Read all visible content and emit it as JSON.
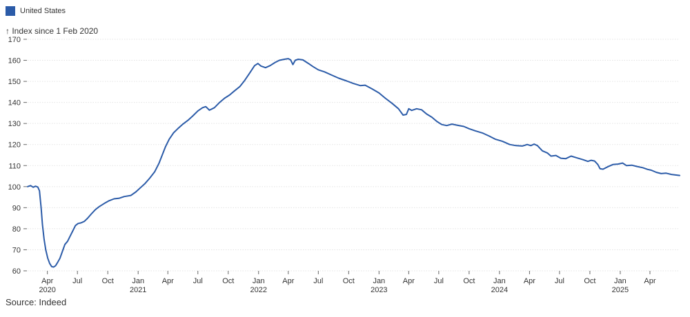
{
  "legend": {
    "label": "United States",
    "color": "#2b5ba8"
  },
  "axis_title": "↑ Index since 1 Feb 2020",
  "source": "Source: Indeed",
  "chart_data": {
    "type": "line",
    "ylabel": "↑ Index since 1 Feb 2020",
    "ylim": [
      60,
      170
    ],
    "yticks": [
      60,
      70,
      80,
      90,
      100,
      110,
      120,
      130,
      140,
      150,
      160,
      170
    ],
    "xlim": [
      "2020-02-01",
      "2025-06-30"
    ],
    "xticks": [
      {
        "date": "2020-04-01",
        "label": "Apr",
        "year": "2020"
      },
      {
        "date": "2020-07-01",
        "label": "Jul",
        "year": ""
      },
      {
        "date": "2020-10-01",
        "label": "Oct",
        "year": ""
      },
      {
        "date": "2021-01-01",
        "label": "Jan",
        "year": "2021"
      },
      {
        "date": "2021-04-01",
        "label": "Apr",
        "year": ""
      },
      {
        "date": "2021-07-01",
        "label": "Jul",
        "year": ""
      },
      {
        "date": "2021-10-01",
        "label": "Oct",
        "year": ""
      },
      {
        "date": "2022-01-01",
        "label": "Jan",
        "year": "2022"
      },
      {
        "date": "2022-04-01",
        "label": "Apr",
        "year": ""
      },
      {
        "date": "2022-07-01",
        "label": "Jul",
        "year": ""
      },
      {
        "date": "2022-10-01",
        "label": "Oct",
        "year": ""
      },
      {
        "date": "2023-01-01",
        "label": "Jan",
        "year": "2023"
      },
      {
        "date": "2023-04-01",
        "label": "Apr",
        "year": ""
      },
      {
        "date": "2023-07-01",
        "label": "Jul",
        "year": ""
      },
      {
        "date": "2023-10-01",
        "label": "Oct",
        "year": ""
      },
      {
        "date": "2024-01-01",
        "label": "Jan",
        "year": "2024"
      },
      {
        "date": "2024-04-01",
        "label": "Apr",
        "year": ""
      },
      {
        "date": "2024-07-01",
        "label": "Jul",
        "year": ""
      },
      {
        "date": "2024-10-01",
        "label": "Oct",
        "year": ""
      },
      {
        "date": "2025-01-01",
        "label": "Jan",
        "year": "2025"
      },
      {
        "date": "2025-04-01",
        "label": "Apr",
        "year": ""
      }
    ],
    "grid": true,
    "legend_position": "top-left",
    "series": [
      {
        "name": "United States",
        "color": "#2b5ba8",
        "points": [
          [
            "2020-02-01",
            100
          ],
          [
            "2020-02-10",
            100.5
          ],
          [
            "2020-02-18",
            99.7
          ],
          [
            "2020-02-25",
            100.2
          ],
          [
            "2020-03-03",
            99.8
          ],
          [
            "2020-03-08",
            98
          ],
          [
            "2020-03-13",
            90
          ],
          [
            "2020-03-17",
            82
          ],
          [
            "2020-03-22",
            75
          ],
          [
            "2020-03-27",
            70
          ],
          [
            "2020-04-02",
            66
          ],
          [
            "2020-04-08",
            63.5
          ],
          [
            "2020-04-14",
            62
          ],
          [
            "2020-04-20",
            61.8
          ],
          [
            "2020-04-26",
            62.5
          ],
          [
            "2020-05-02",
            64
          ],
          [
            "2020-05-09",
            66
          ],
          [
            "2020-05-16",
            69
          ],
          [
            "2020-05-24",
            72.5
          ],
          [
            "2020-06-01",
            74
          ],
          [
            "2020-06-09",
            76.5
          ],
          [
            "2020-06-17",
            79
          ],
          [
            "2020-06-25",
            81.5
          ],
          [
            "2020-07-03",
            82.5
          ],
          [
            "2020-07-12",
            82.8
          ],
          [
            "2020-07-22",
            83.5
          ],
          [
            "2020-08-01",
            85
          ],
          [
            "2020-08-12",
            87
          ],
          [
            "2020-08-24",
            89
          ],
          [
            "2020-09-05",
            90.5
          ],
          [
            "2020-09-20",
            92
          ],
          [
            "2020-10-05",
            93.3
          ],
          [
            "2020-10-20",
            94.2
          ],
          [
            "2020-11-05",
            94.5
          ],
          [
            "2020-11-20",
            95.3
          ],
          [
            "2020-12-10",
            95.8
          ],
          [
            "2020-12-25",
            97.5
          ],
          [
            "2021-01-08",
            99.5
          ],
          [
            "2021-01-22",
            101.5
          ],
          [
            "2021-02-05",
            104
          ],
          [
            "2021-02-20",
            107
          ],
          [
            "2021-03-05",
            111
          ],
          [
            "2021-03-15",
            115
          ],
          [
            "2021-03-25",
            119
          ],
          [
            "2021-04-05",
            122.5
          ],
          [
            "2021-04-18",
            125.5
          ],
          [
            "2021-05-01",
            127.5
          ],
          [
            "2021-05-15",
            129.5
          ],
          [
            "2021-06-01",
            131.5
          ],
          [
            "2021-06-15",
            133.5
          ],
          [
            "2021-07-01",
            136
          ],
          [
            "2021-07-15",
            137.5
          ],
          [
            "2021-07-25",
            138
          ],
          [
            "2021-08-05",
            136.3
          ],
          [
            "2021-08-20",
            137.5
          ],
          [
            "2021-09-05",
            140
          ],
          [
            "2021-09-20",
            142
          ],
          [
            "2021-10-05",
            143.5
          ],
          [
            "2021-10-20",
            145.5
          ],
          [
            "2021-11-05",
            147.5
          ],
          [
            "2021-11-20",
            150.5
          ],
          [
            "2021-12-05",
            154
          ],
          [
            "2021-12-20",
            157.5
          ],
          [
            "2021-12-30",
            158.5
          ],
          [
            "2022-01-08",
            157.3
          ],
          [
            "2022-01-22",
            156.5
          ],
          [
            "2022-02-05",
            157.5
          ],
          [
            "2022-02-20",
            159
          ],
          [
            "2022-03-05",
            160
          ],
          [
            "2022-03-20",
            160.5
          ],
          [
            "2022-04-01",
            160.8
          ],
          [
            "2022-04-08",
            160.2
          ],
          [
            "2022-04-15",
            158
          ],
          [
            "2022-04-22",
            160
          ],
          [
            "2022-05-01",
            160.5
          ],
          [
            "2022-05-15",
            160.2
          ],
          [
            "2022-06-01",
            158.5
          ],
          [
            "2022-06-15",
            157
          ],
          [
            "2022-07-01",
            155.5
          ],
          [
            "2022-07-20",
            154.5
          ],
          [
            "2022-08-10",
            153
          ],
          [
            "2022-09-01",
            151.5
          ],
          [
            "2022-09-25",
            150.2
          ],
          [
            "2022-10-15",
            149
          ],
          [
            "2022-11-05",
            148
          ],
          [
            "2022-11-20",
            148.2
          ],
          [
            "2022-12-10",
            146.5
          ],
          [
            "2023-01-01",
            144.5
          ],
          [
            "2023-01-20",
            142
          ],
          [
            "2023-02-10",
            139.5
          ],
          [
            "2023-03-01",
            137
          ],
          [
            "2023-03-15",
            134
          ],
          [
            "2023-03-25",
            134.3
          ],
          [
            "2023-04-01",
            137
          ],
          [
            "2023-04-10",
            136.2
          ],
          [
            "2023-04-25",
            137
          ],
          [
            "2023-05-10",
            136.5
          ],
          [
            "2023-05-25",
            134.5
          ],
          [
            "2023-06-10",
            133
          ],
          [
            "2023-06-25",
            131
          ],
          [
            "2023-07-10",
            129.5
          ],
          [
            "2023-07-25",
            129
          ],
          [
            "2023-08-10",
            129.7
          ],
          [
            "2023-08-25",
            129.2
          ],
          [
            "2023-09-15",
            128.6
          ],
          [
            "2023-10-01",
            127.5
          ],
          [
            "2023-10-20",
            126.5
          ],
          [
            "2023-11-10",
            125.5
          ],
          [
            "2023-12-01",
            124
          ],
          [
            "2023-12-20",
            122.5
          ],
          [
            "2024-01-10",
            121.5
          ],
          [
            "2024-02-01",
            120
          ],
          [
            "2024-02-20",
            119.5
          ],
          [
            "2024-03-10",
            119.3
          ],
          [
            "2024-03-25",
            120
          ],
          [
            "2024-04-05",
            119.5
          ],
          [
            "2024-04-15",
            120.2
          ],
          [
            "2024-04-25",
            119.5
          ],
          [
            "2024-05-10",
            117
          ],
          [
            "2024-05-25",
            116
          ],
          [
            "2024-06-05",
            114.5
          ],
          [
            "2024-06-20",
            114.8
          ],
          [
            "2024-07-05",
            113.5
          ],
          [
            "2024-07-20",
            113.3
          ],
          [
            "2024-08-05",
            114.5
          ],
          [
            "2024-08-20",
            113.8
          ],
          [
            "2024-09-10",
            112.8
          ],
          [
            "2024-09-25",
            112
          ],
          [
            "2024-10-05",
            112.5
          ],
          [
            "2024-10-15",
            112.2
          ],
          [
            "2024-10-25",
            110.5
          ],
          [
            "2024-11-01",
            108.5
          ],
          [
            "2024-11-10",
            108.3
          ],
          [
            "2024-11-25",
            109.5
          ],
          [
            "2024-12-10",
            110.5
          ],
          [
            "2024-12-25",
            110.7
          ],
          [
            "2025-01-08",
            111.2
          ],
          [
            "2025-01-20",
            110
          ],
          [
            "2025-02-05",
            110.2
          ],
          [
            "2025-02-20",
            109.6
          ],
          [
            "2025-03-10",
            109
          ],
          [
            "2025-03-25",
            108.2
          ],
          [
            "2025-04-05",
            107.8
          ],
          [
            "2025-04-20",
            106.8
          ],
          [
            "2025-05-05",
            106.2
          ],
          [
            "2025-05-20",
            106.4
          ],
          [
            "2025-06-05",
            105.8
          ],
          [
            "2025-06-30",
            105.3
          ]
        ]
      }
    ]
  }
}
